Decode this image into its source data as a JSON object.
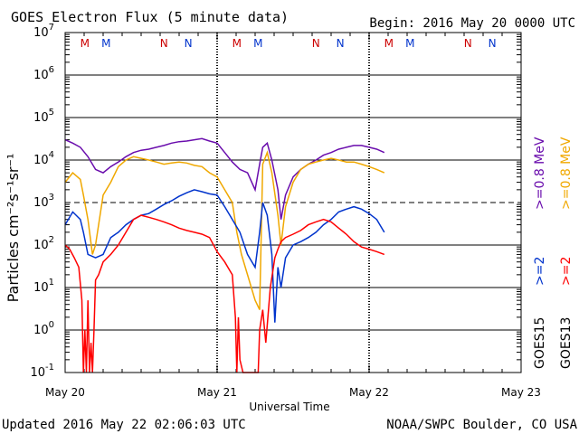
{
  "chart_data": {
    "type": "line",
    "title": "GOES Electron Flux (5 minute data)",
    "begin_label": "Begin: 2016 May 20 0000 UTC",
    "xlabel": "Universal Time",
    "ylabel": "Particles cm⁻²s⁻¹sr⁻¹",
    "y_scale": "log",
    "ylim": [
      0.1,
      10000000
    ],
    "y_tick_labels": [
      {
        "mantissa": "10",
        "exp": "7",
        "value": 10000000
      },
      {
        "mantissa": "10",
        "exp": "6",
        "value": 1000000
      },
      {
        "mantissa": "10",
        "exp": "5",
        "value": 100000
      },
      {
        "mantissa": "10",
        "exp": "4",
        "value": 10000
      },
      {
        "mantissa": "10",
        "exp": "3",
        "value": 1000
      },
      {
        "mantissa": "10",
        "exp": "2",
        "value": 100
      },
      {
        "mantissa": "10",
        "exp": "1",
        "value": 10
      },
      {
        "mantissa": "10",
        "exp": "0",
        "value": 1
      },
      {
        "mantissa": "10",
        "exp": "-1",
        "value": 0.1
      }
    ],
    "x_tick_labels": [
      "May 20",
      "May 21",
      "May 22",
      "May 23"
    ],
    "x_range_days": [
      0,
      3
    ],
    "grid": true,
    "dashed_gridline_value": 1000,
    "letter_markers": [
      {
        "day": 0.13,
        "letter": "M",
        "color": "#cc0000"
      },
      {
        "day": 0.27,
        "letter": "M",
        "color": "#0033cc"
      },
      {
        "day": 0.65,
        "letter": "N",
        "color": "#cc0000"
      },
      {
        "day": 0.81,
        "letter": "N",
        "color": "#0033cc"
      },
      {
        "day": 1.13,
        "letter": "M",
        "color": "#cc0000"
      },
      {
        "day": 1.27,
        "letter": "M",
        "color": "#0033cc"
      },
      {
        "day": 1.65,
        "letter": "N",
        "color": "#cc0000"
      },
      {
        "day": 1.81,
        "letter": "N",
        "color": "#0033cc"
      },
      {
        "day": 2.13,
        "letter": "M",
        "color": "#cc0000"
      },
      {
        "day": 2.27,
        "letter": "M",
        "color": "#0033cc"
      },
      {
        "day": 2.65,
        "letter": "N",
        "color": "#cc0000"
      },
      {
        "day": 2.81,
        "letter": "N",
        "color": "#0033cc"
      }
    ],
    "legend": {
      "goes15": {
        "label": "GOES15",
        "entries": [
          {
            "text": ">=0.8 MeV",
            "color": "#6a0dad"
          },
          {
            "text": ">=2",
            "color": "#0033cc"
          }
        ]
      },
      "goes13": {
        "label": "GOES13",
        "entries": [
          {
            "text": ">=0.8 MeV",
            "color": "#f0a800"
          },
          {
            "text": ">=2",
            "color": "#ff0000"
          }
        ]
      }
    },
    "series": [
      {
        "name": "GOES15 >=0.8 MeV",
        "color": "#6a0dad",
        "x": [
          0.0,
          0.05,
          0.1,
          0.15,
          0.2,
          0.25,
          0.3,
          0.35,
          0.4,
          0.45,
          0.5,
          0.55,
          0.6,
          0.65,
          0.7,
          0.75,
          0.8,
          0.85,
          0.9,
          0.95,
          1.0,
          1.05,
          1.1,
          1.15,
          1.2,
          1.25,
          1.28,
          1.3,
          1.33,
          1.36,
          1.4,
          1.42,
          1.45,
          1.5,
          1.55,
          1.6,
          1.65,
          1.7,
          1.75,
          1.8,
          1.85,
          1.9,
          1.95,
          2.0,
          2.05,
          2.1
        ],
        "y": [
          30000,
          25000,
          20000,
          12000,
          6000,
          5000,
          7000,
          9000,
          12000,
          15000,
          17000,
          18000,
          20000,
          22000,
          25000,
          27000,
          28000,
          30000,
          32000,
          28000,
          25000,
          15000,
          9000,
          6000,
          5000,
          2000,
          8000,
          20000,
          25000,
          10000,
          2000,
          400,
          1500,
          4000,
          6000,
          8000,
          10000,
          13000,
          15000,
          18000,
          20000,
          22000,
          22000,
          20000,
          18000,
          15000
        ]
      },
      {
        "name": "GOES13 >=0.8 MeV",
        "color": "#f0a800",
        "x": [
          0.0,
          0.05,
          0.1,
          0.12,
          0.15,
          0.18,
          0.2,
          0.25,
          0.3,
          0.35,
          0.4,
          0.45,
          0.5,
          0.55,
          0.6,
          0.65,
          0.7,
          0.75,
          0.8,
          0.85,
          0.9,
          0.95,
          1.0,
          1.05,
          1.1,
          1.13,
          1.16,
          1.2,
          1.25,
          1.28,
          1.3,
          1.33,
          1.36,
          1.4,
          1.42,
          1.45,
          1.5,
          1.55,
          1.6,
          1.65,
          1.7,
          1.75,
          1.8,
          1.85,
          1.9,
          1.95,
          2.0,
          2.05,
          2.1
        ],
        "y": [
          3000,
          5000,
          3500,
          1500,
          400,
          60,
          100,
          1500,
          3000,
          7000,
          10000,
          12000,
          11000,
          10000,
          9000,
          8000,
          8500,
          9000,
          8500,
          7500,
          7000,
          5000,
          4000,
          2000,
          1000,
          200,
          60,
          20,
          5,
          3,
          8000,
          15000,
          5000,
          500,
          100,
          800,
          3000,
          6000,
          8000,
          9000,
          10000,
          11000,
          10000,
          9000,
          9000,
          8000,
          7000,
          6000,
          5000
        ]
      },
      {
        "name": "GOES15 >=2",
        "color": "#0033cc",
        "x": [
          0.0,
          0.05,
          0.1,
          0.12,
          0.15,
          0.2,
          0.25,
          0.3,
          0.35,
          0.4,
          0.45,
          0.5,
          0.55,
          0.6,
          0.65,
          0.7,
          0.75,
          0.8,
          0.85,
          0.9,
          0.95,
          1.0,
          1.05,
          1.1,
          1.15,
          1.2,
          1.25,
          1.28,
          1.3,
          1.33,
          1.36,
          1.38,
          1.4,
          1.42,
          1.45,
          1.5,
          1.55,
          1.6,
          1.65,
          1.7,
          1.75,
          1.8,
          1.85,
          1.9,
          1.95,
          2.0,
          2.05,
          2.1
        ],
        "y": [
          300,
          600,
          400,
          200,
          60,
          50,
          60,
          150,
          200,
          300,
          400,
          500,
          550,
          700,
          900,
          1100,
          1400,
          1700,
          2000,
          1800,
          1600,
          1500,
          800,
          400,
          200,
          60,
          30,
          200,
          1000,
          500,
          60,
          1.5,
          30,
          10,
          50,
          100,
          120,
          150,
          200,
          300,
          400,
          600,
          700,
          800,
          700,
          550,
          400,
          200
        ]
      },
      {
        "name": "GOES13 >=2",
        "color": "#ff0000",
        "x": [
          0.0,
          0.03,
          0.06,
          0.09,
          0.11,
          0.12,
          0.13,
          0.14,
          0.15,
          0.16,
          0.17,
          0.18,
          0.19,
          0.2,
          0.22,
          0.25,
          0.3,
          0.35,
          0.4,
          0.45,
          0.5,
          0.55,
          0.6,
          0.65,
          0.7,
          0.75,
          0.8,
          0.85,
          0.9,
          0.95,
          1.0,
          1.05,
          1.1,
          1.12,
          1.13,
          1.14,
          1.15,
          1.17,
          1.2,
          1.22,
          1.25,
          1.27,
          1.28,
          1.3,
          1.32,
          1.35,
          1.38,
          1.4,
          1.42,
          1.45,
          1.5,
          1.55,
          1.6,
          1.65,
          1.7,
          1.75,
          1.8,
          1.85,
          1.9,
          1.95,
          2.0,
          2.05,
          2.1
        ],
        "y": [
          100,
          80,
          50,
          30,
          5,
          0.1,
          1,
          0.1,
          5,
          0.1,
          0.5,
          0.1,
          1,
          15,
          20,
          40,
          60,
          100,
          200,
          400,
          500,
          450,
          400,
          350,
          300,
          250,
          220,
          200,
          180,
          150,
          70,
          40,
          20,
          2,
          0.1,
          2,
          0.2,
          0.1,
          0.1,
          0.1,
          0.1,
          0.1,
          1,
          3,
          0.5,
          10,
          50,
          80,
          120,
          150,
          180,
          220,
          300,
          350,
          400,
          350,
          250,
          180,
          120,
          90,
          80,
          70,
          60
        ]
      }
    ]
  },
  "footer": {
    "updated": "Updated 2016 May 22 02:06:03 UTC",
    "source": "NOAA/SWPC Boulder, CO USA"
  }
}
